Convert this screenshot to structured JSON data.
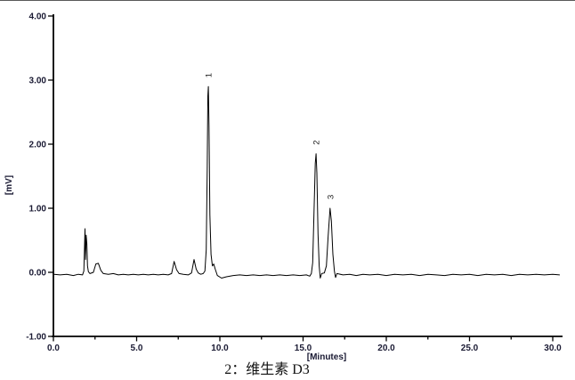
{
  "figure": {
    "caption": "2：维生素 D3"
  },
  "chart_data": {
    "type": "line",
    "title": "",
    "xlabel": "[Minutes]",
    "ylabel": "[mV]",
    "xlim": [
      0,
      30
    ],
    "ylim": [
      -1,
      4
    ],
    "grid": false,
    "legend": null,
    "trace_color": "#000000",
    "text_color": "#1a1a33",
    "x_ticks": [
      {
        "v": 0,
        "label": "0.0"
      },
      {
        "v": 5,
        "label": "5.0"
      },
      {
        "v": 10,
        "label": "10.0"
      },
      {
        "v": 15,
        "label": "15.0"
      },
      {
        "v": 20,
        "label": "20.0"
      },
      {
        "v": 25,
        "label": "25.0"
      },
      {
        "v": 30,
        "label": "30.0"
      }
    ],
    "x_minor_ticks": [
      2.5,
      7.5,
      12.5,
      17.5,
      22.5,
      27.5
    ],
    "y_ticks": [
      {
        "v": -1,
        "label": "-1.00"
      },
      {
        "v": 0,
        "label": "0.00"
      },
      {
        "v": 1,
        "label": "1.00"
      },
      {
        "v": 2,
        "label": "2.00"
      },
      {
        "v": 3,
        "label": "3.00"
      },
      {
        "v": 4,
        "label": "4.00"
      }
    ],
    "peaks": [
      {
        "label": "1",
        "x": 9.31,
        "y": 2.9
      },
      {
        "label": "2",
        "x": 15.78,
        "y": 1.85
      },
      {
        "label": "3",
        "x": 16.62,
        "y": 1.0
      }
    ],
    "points": [
      [
        0.05,
        -0.03
      ],
      [
        0.4,
        -0.04
      ],
      [
        0.8,
        -0.03
      ],
      [
        1.2,
        -0.05
      ],
      [
        1.5,
        -0.03
      ],
      [
        1.75,
        -0.04
      ],
      [
        1.83,
        0.02
      ],
      [
        1.87,
        0.42
      ],
      [
        1.9,
        0.68
      ],
      [
        1.93,
        0.2
      ],
      [
        1.97,
        0.58
      ],
      [
        2.01,
        0.44
      ],
      [
        2.05,
        0.1
      ],
      [
        2.1,
        0.01
      ],
      [
        2.2,
        -0.02
      ],
      [
        2.4,
        0.0
      ],
      [
        2.55,
        0.13
      ],
      [
        2.7,
        0.14
      ],
      [
        2.85,
        0.03
      ],
      [
        3.0,
        -0.02
      ],
      [
        3.3,
        -0.03
      ],
      [
        3.6,
        -0.02
      ],
      [
        3.9,
        -0.04
      ],
      [
        4.2,
        -0.03
      ],
      [
        4.5,
        -0.04
      ],
      [
        4.8,
        -0.03
      ],
      [
        5.1,
        -0.04
      ],
      [
        5.4,
        -0.03
      ],
      [
        5.7,
        -0.04
      ],
      [
        6.0,
        -0.03
      ],
      [
        6.3,
        -0.04
      ],
      [
        6.6,
        -0.03
      ],
      [
        6.9,
        -0.04
      ],
      [
        7.1,
        -0.02
      ],
      [
        7.25,
        0.17
      ],
      [
        7.4,
        0.04
      ],
      [
        7.55,
        -0.02
      ],
      [
        7.8,
        -0.03
      ],
      [
        8.1,
        -0.04
      ],
      [
        8.3,
        -0.01
      ],
      [
        8.45,
        0.2
      ],
      [
        8.58,
        0.05
      ],
      [
        8.7,
        -0.01
      ],
      [
        8.85,
        -0.03
      ],
      [
        9.0,
        -0.02
      ],
      [
        9.1,
        0.02
      ],
      [
        9.18,
        0.35
      ],
      [
        9.24,
        1.6
      ],
      [
        9.28,
        2.75
      ],
      [
        9.31,
        2.9
      ],
      [
        9.35,
        2.3
      ],
      [
        9.4,
        0.9
      ],
      [
        9.47,
        0.28
      ],
      [
        9.55,
        0.1
      ],
      [
        9.63,
        0.13
      ],
      [
        9.72,
        0.05
      ],
      [
        9.85,
        -0.05
      ],
      [
        10.1,
        -0.09
      ],
      [
        10.4,
        -0.07
      ],
      [
        10.8,
        -0.05
      ],
      [
        11.2,
        -0.04
      ],
      [
        11.6,
        -0.05
      ],
      [
        12.0,
        -0.04
      ],
      [
        12.4,
        -0.05
      ],
      [
        12.8,
        -0.04
      ],
      [
        13.2,
        -0.05
      ],
      [
        13.6,
        -0.04
      ],
      [
        14.0,
        -0.05
      ],
      [
        14.4,
        -0.04
      ],
      [
        14.8,
        -0.05
      ],
      [
        15.2,
        -0.04
      ],
      [
        15.4,
        -0.06
      ],
      [
        15.5,
        -0.02
      ],
      [
        15.58,
        0.15
      ],
      [
        15.66,
        0.95
      ],
      [
        15.73,
        1.7
      ],
      [
        15.78,
        1.85
      ],
      [
        15.83,
        1.55
      ],
      [
        15.9,
        0.6
      ],
      [
        15.97,
        0.1
      ],
      [
        16.03,
        -0.09
      ],
      [
        16.12,
        -0.02
      ],
      [
        16.28,
        -0.01
      ],
      [
        16.4,
        0.1
      ],
      [
        16.5,
        0.55
      ],
      [
        16.62,
        1.0
      ],
      [
        16.7,
        0.8
      ],
      [
        16.79,
        0.28
      ],
      [
        16.88,
        0.02
      ],
      [
        16.95,
        -0.08
      ],
      [
        17.03,
        -0.02
      ],
      [
        17.4,
        -0.04
      ],
      [
        17.8,
        -0.03
      ],
      [
        18.2,
        -0.05
      ],
      [
        18.6,
        -0.03
      ],
      [
        19.0,
        -0.04
      ],
      [
        19.5,
        -0.03
      ],
      [
        20.0,
        -0.05
      ],
      [
        20.5,
        -0.03
      ],
      [
        21.0,
        -0.04
      ],
      [
        21.5,
        -0.03
      ],
      [
        22.0,
        -0.05
      ],
      [
        22.5,
        -0.03
      ],
      [
        23.0,
        -0.04
      ],
      [
        23.5,
        -0.05
      ],
      [
        24.0,
        -0.03
      ],
      [
        24.5,
        -0.04
      ],
      [
        25.0,
        -0.03
      ],
      [
        25.5,
        -0.05
      ],
      [
        26.0,
        -0.03
      ],
      [
        26.5,
        -0.04
      ],
      [
        27.0,
        -0.03
      ],
      [
        27.5,
        -0.05
      ],
      [
        28.0,
        -0.03
      ],
      [
        28.5,
        -0.04
      ],
      [
        29.0,
        -0.03
      ],
      [
        29.5,
        -0.04
      ],
      [
        30.0,
        -0.03
      ],
      [
        30.4,
        -0.04
      ]
    ]
  }
}
